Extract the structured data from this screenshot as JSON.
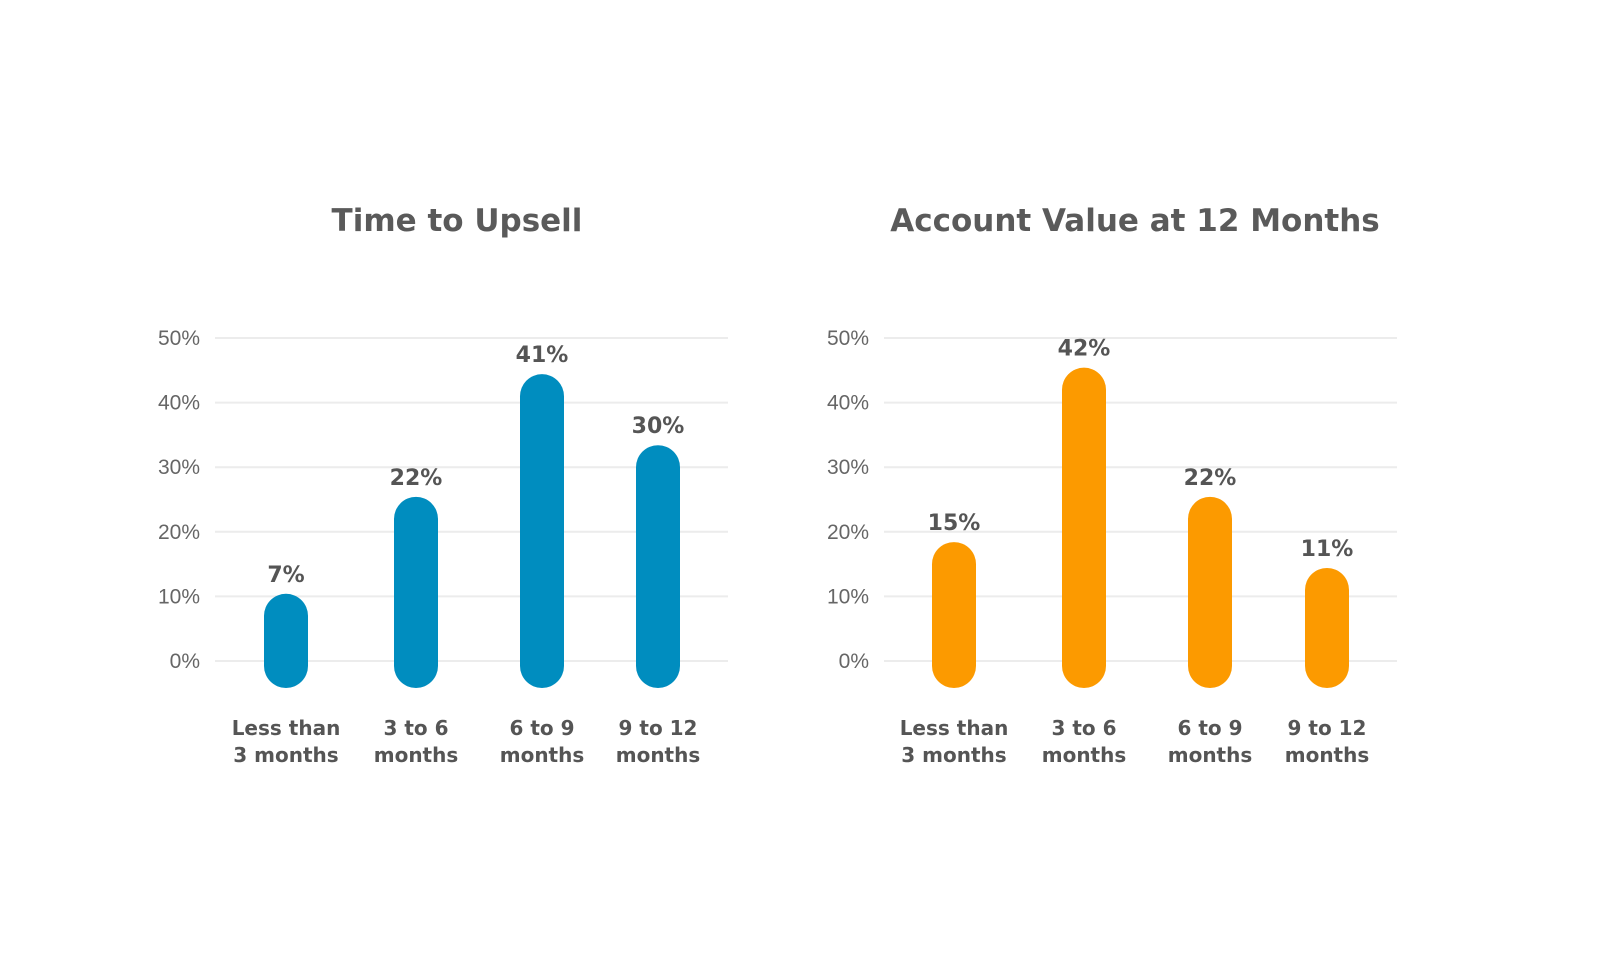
{
  "chart_data": [
    {
      "type": "bar",
      "title": "Time to Upsell",
      "categories": [
        [
          "Less than",
          "3 months"
        ],
        [
          "3 to 6",
          "months"
        ],
        [
          "6 to 9",
          "months"
        ],
        [
          "9 to 12",
          "months"
        ]
      ],
      "values": [
        7,
        22,
        41,
        30
      ],
      "value_labels": [
        "7%",
        "22%",
        "41%",
        "30%"
      ],
      "ylim": [
        0,
        50
      ],
      "yticks": [
        0,
        10,
        20,
        30,
        40,
        50
      ],
      "ytick_labels": [
        "0%",
        "10%",
        "20%",
        "30%",
        "40%",
        "50%"
      ],
      "color": "#008dbf",
      "grid": true
    },
    {
      "type": "bar",
      "title": "Account Value at 12 Months",
      "categories": [
        [
          "Less than",
          "3 months"
        ],
        [
          "3 to 6",
          "months"
        ],
        [
          "6 to 9",
          "months"
        ],
        [
          "9 to 12",
          "months"
        ]
      ],
      "values": [
        15,
        42,
        22,
        11
      ],
      "value_labels": [
        "15%",
        "42%",
        "22%",
        "11%"
      ],
      "ylim": [
        0,
        50
      ],
      "yticks": [
        0,
        10,
        20,
        30,
        40,
        50
      ],
      "ytick_labels": [
        "0%",
        "10%",
        "20%",
        "30%",
        "40%",
        "50%"
      ],
      "color": "#fc9a00",
      "grid": true
    }
  ]
}
